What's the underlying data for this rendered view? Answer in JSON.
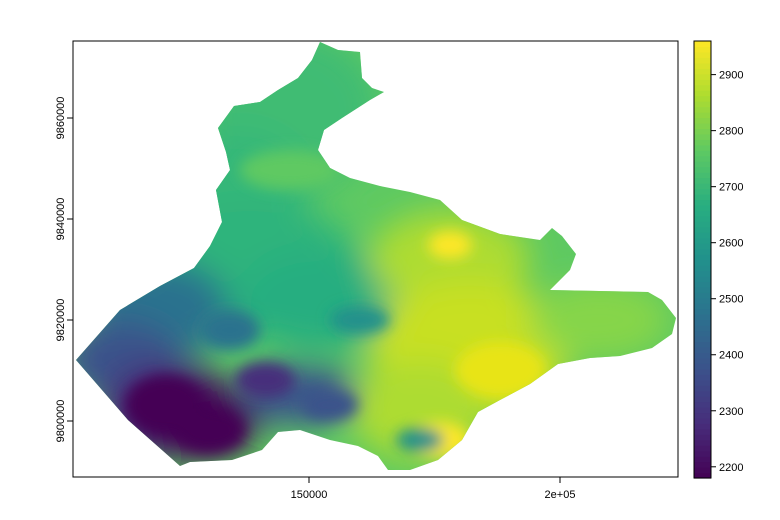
{
  "chart_data": {
    "type": "heatmap",
    "x_axis": {
      "ticks": [
        150000,
        200000
      ],
      "tick_labels": [
        "150000",
        "2e+05"
      ],
      "range": [
        103000,
        224000
      ]
    },
    "y_axis": {
      "ticks": [
        9800000,
        9820000,
        9840000,
        9860000
      ],
      "tick_labels": [
        "9800000",
        "9820000",
        "9840000",
        "9860000"
      ],
      "range": [
        9789000,
        9875000
      ]
    },
    "legend": {
      "position": "right",
      "ticks": [
        2200,
        2300,
        2400,
        2500,
        2600,
        2700,
        2800,
        2900
      ],
      "tick_labels": [
        "2200",
        "2300",
        "2400",
        "2500",
        "2600",
        "2700",
        "2800",
        "2900"
      ],
      "range": [
        2180,
        2960
      ]
    },
    "colormap": [
      "#440154",
      "#472d7b",
      "#3b528b",
      "#2c728e",
      "#21918c",
      "#28ae80",
      "#5ec962",
      "#addc30",
      "#fde725"
    ],
    "grid": false
  }
}
